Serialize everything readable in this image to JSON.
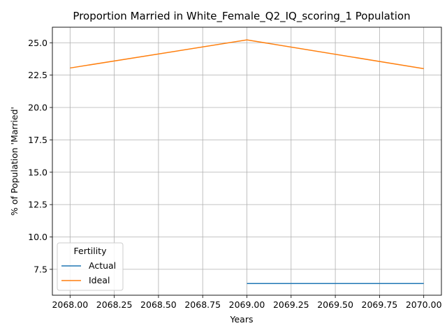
{
  "chart_data": {
    "type": "line",
    "title": "Proportion Married in White_Female_Q2_IQ_scoring_1 Population",
    "xlabel": "Years",
    "ylabel": "% of Population 'Married'",
    "xlim": [
      2067.9,
      2070.1
    ],
    "ylim": [
      5.5,
      26.2
    ],
    "xticks": [
      "2068.00",
      "2068.25",
      "2068.50",
      "2068.75",
      "2069.00",
      "2069.25",
      "2069.50",
      "2069.75",
      "2070.00"
    ],
    "yticks": [
      "7.5",
      "10.0",
      "12.5",
      "15.0",
      "17.5",
      "20.0",
      "22.5",
      "25.0"
    ],
    "grid": true,
    "legend": {
      "title": "Fertility",
      "position": "lower-left"
    },
    "series": [
      {
        "name": "Actual",
        "color": "#1f77b4",
        "x": [
          2069,
          2070
        ],
        "y": [
          6.4,
          6.4
        ]
      },
      {
        "name": "Ideal",
        "color": "#ff7f0e",
        "x": [
          2068,
          2069,
          2070
        ],
        "y": [
          23.05,
          25.22,
          23.0
        ]
      }
    ]
  }
}
